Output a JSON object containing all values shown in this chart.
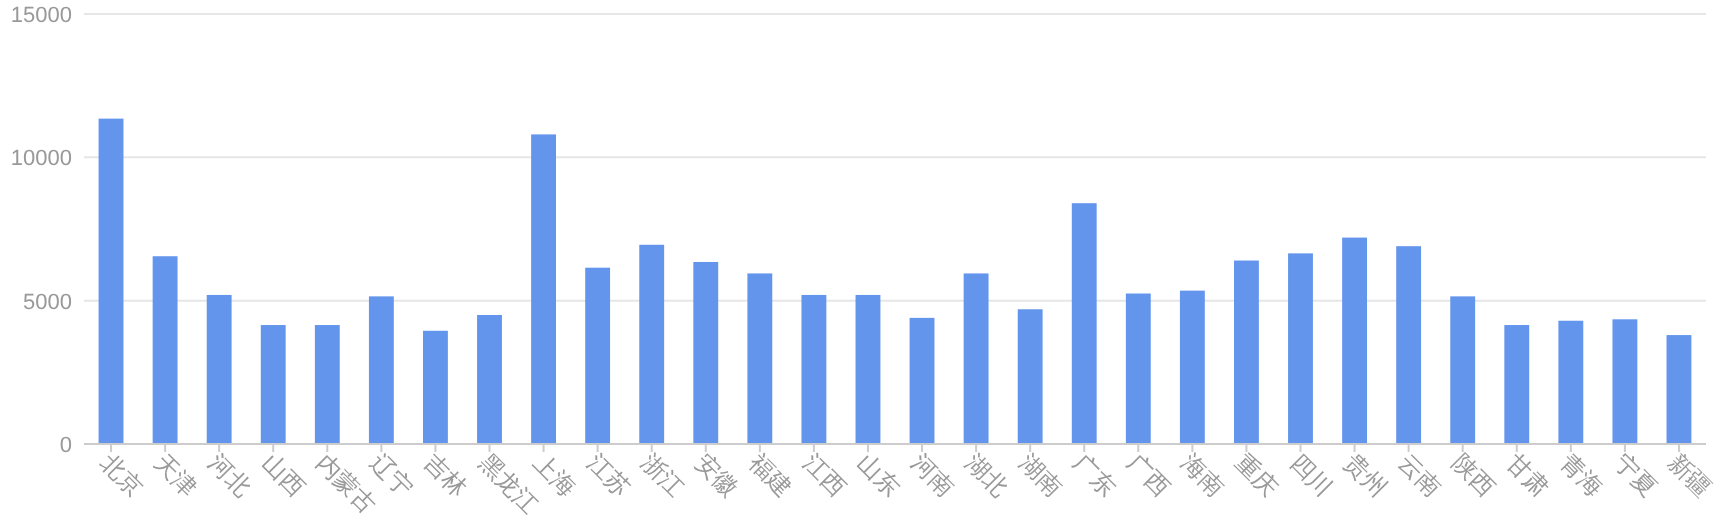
{
  "chart_data": {
    "type": "bar",
    "categories": [
      "北京",
      "天津",
      "河北",
      "山西",
      "内蒙古",
      "辽宁",
      "吉林",
      "黑龙江",
      "上海",
      "江苏",
      "浙江",
      "安徽",
      "福建",
      "江西",
      "山东",
      "河南",
      "湖北",
      "湖南",
      "广东",
      "广西",
      "海南",
      "重庆",
      "四川",
      "贵州",
      "云南",
      "陕西",
      "甘肃",
      "青海",
      "宁夏",
      "新疆"
    ],
    "values": [
      11350,
      6550,
      5200,
      4150,
      4150,
      5150,
      3950,
      4500,
      10800,
      6150,
      6950,
      6350,
      5950,
      5200,
      5200,
      4400,
      5950,
      4700,
      8400,
      5250,
      5350,
      6400,
      6650,
      7200,
      6900,
      5150,
      4150,
      4300,
      4350,
      3800
    ],
    "color": "#6495ed",
    "ylim": [
      0,
      15000
    ],
    "yticks": [
      0,
      5000,
      10000,
      15000
    ],
    "grid": "y"
  }
}
